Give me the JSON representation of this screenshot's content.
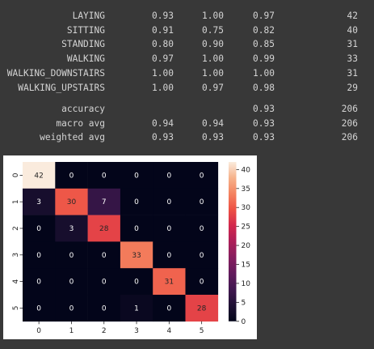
{
  "report": {
    "rows": [
      {
        "label": "LAYING",
        "precision": "0.93",
        "recall": "1.00",
        "f1": "0.97",
        "support": "42"
      },
      {
        "label": "SITTING",
        "precision": "0.91",
        "recall": "0.75",
        "f1": "0.82",
        "support": "40"
      },
      {
        "label": "STANDING",
        "precision": "0.80",
        "recall": "0.90",
        "f1": "0.85",
        "support": "31"
      },
      {
        "label": "WALKING",
        "precision": "0.97",
        "recall": "1.00",
        "f1": "0.99",
        "support": "33"
      },
      {
        "label": "WALKING_DOWNSTAIRS",
        "precision": "1.00",
        "recall": "1.00",
        "f1": "1.00",
        "support": "31"
      },
      {
        "label": "WALKING_UPSTAIRS",
        "precision": "1.00",
        "recall": "0.97",
        "f1": "0.98",
        "support": "29"
      }
    ],
    "summary": [
      {
        "label": "accuracy",
        "precision": "",
        "recall": "",
        "f1": "0.93",
        "support": "206"
      },
      {
        "label": "macro avg",
        "precision": "0.94",
        "recall": "0.94",
        "f1": "0.93",
        "support": "206"
      },
      {
        "label": "weighted avg",
        "precision": "0.93",
        "recall": "0.93",
        "f1": "0.93",
        "support": "206"
      }
    ]
  },
  "chart_data": {
    "type": "heatmap",
    "x_labels": [
      "0",
      "1",
      "2",
      "3",
      "4",
      "5"
    ],
    "y_labels": [
      "0",
      "1",
      "2",
      "3",
      "4",
      "5"
    ],
    "matrix": [
      [
        42,
        0,
        0,
        0,
        0,
        0
      ],
      [
        3,
        30,
        7,
        0,
        0,
        0
      ],
      [
        0,
        3,
        28,
        0,
        0,
        0
      ],
      [
        0,
        0,
        0,
        33,
        0,
        0
      ],
      [
        0,
        0,
        0,
        0,
        31,
        0
      ],
      [
        0,
        0,
        0,
        1,
        0,
        28
      ]
    ],
    "colorbar": {
      "min": 0,
      "max": 42,
      "ticks": [
        0,
        5,
        10,
        15,
        20,
        25,
        30,
        35,
        40
      ]
    },
    "colormap": "rocket",
    "annotations": true
  }
}
